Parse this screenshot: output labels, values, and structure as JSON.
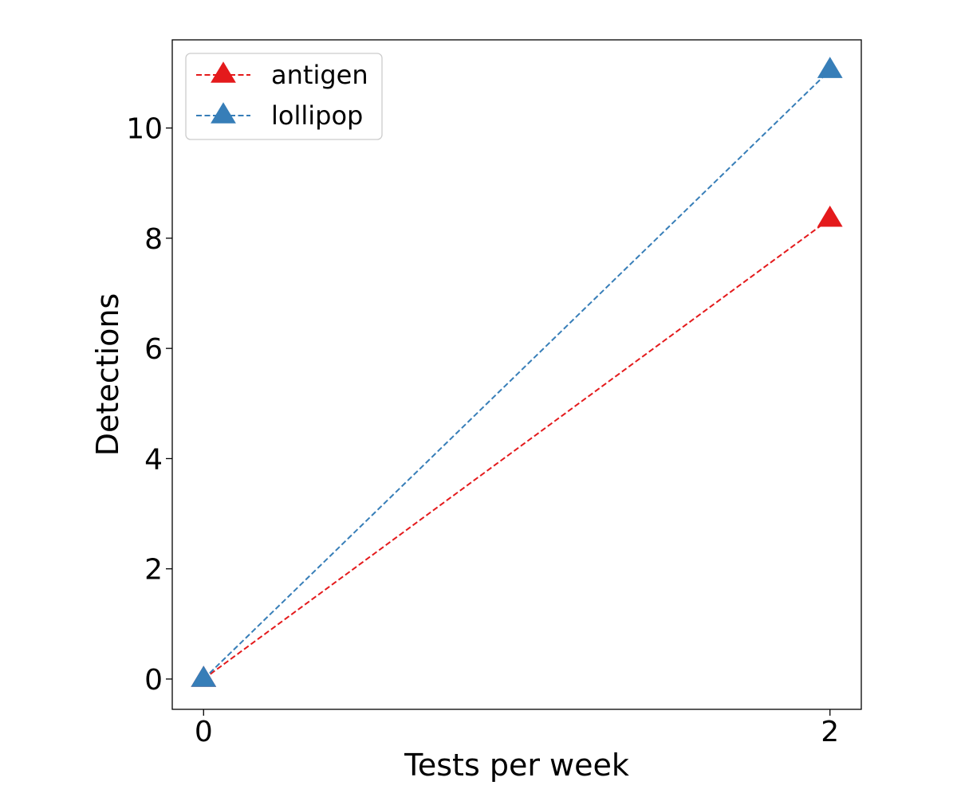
{
  "chart_data": {
    "type": "line",
    "title": "",
    "xlabel": "Tests per week",
    "ylabel": "Detections",
    "xlim": [
      -0.1,
      2.1
    ],
    "ylim": [
      -0.55,
      11.6
    ],
    "x_ticks": [
      0,
      2
    ],
    "y_ticks": [
      0,
      2,
      4,
      6,
      8,
      10
    ],
    "grid": false,
    "legend_position": "top-left",
    "line_style": "dashed",
    "marker": "triangle-up",
    "series": [
      {
        "name": "antigen",
        "color": "#e41a1c",
        "x": [
          0,
          2
        ],
        "y": [
          0,
          8.35
        ]
      },
      {
        "name": "lollipop",
        "color": "#377eb8",
        "x": [
          0,
          2
        ],
        "y": [
          0,
          11.05
        ]
      }
    ]
  }
}
